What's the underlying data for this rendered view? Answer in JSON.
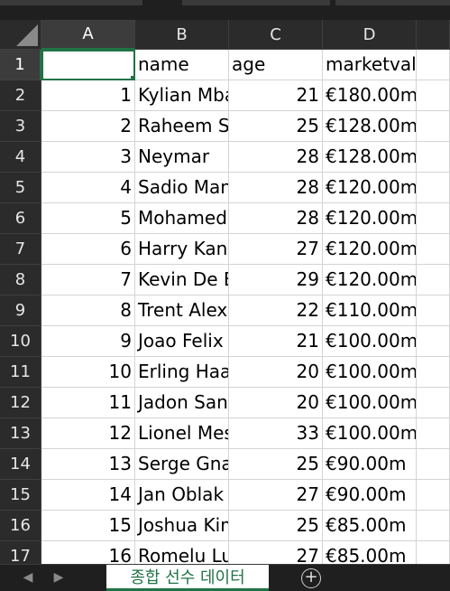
{
  "columns": [
    "A",
    "B",
    "C",
    "D"
  ],
  "rows": [
    {
      "row": "1",
      "a": "",
      "b": "name",
      "c": "age",
      "d": "marketvalue"
    },
    {
      "row": "2",
      "a": "1",
      "b": "Kylian Mbappé",
      "c": "21",
      "d": "€180.00m"
    },
    {
      "row": "3",
      "a": "2",
      "b": "Raheem Sterling",
      "c": "25",
      "d": "€128.00m"
    },
    {
      "row": "4",
      "a": "3",
      "b": "Neymar",
      "c": "28",
      "d": "€128.00m"
    },
    {
      "row": "5",
      "a": "4",
      "b": "Sadio Mané",
      "c": "28",
      "d": "€120.00m"
    },
    {
      "row": "6",
      "a": "5",
      "b": "Mohamed Salah",
      "c": "28",
      "d": "€120.00m"
    },
    {
      "row": "7",
      "a": "6",
      "b": "Harry Kane",
      "c": "27",
      "d": "€120.00m"
    },
    {
      "row": "8",
      "a": "7",
      "b": "Kevin De Bruyne",
      "c": "29",
      "d": "€120.00m"
    },
    {
      "row": "9",
      "a": "8",
      "b": "Trent Alexander-Arnold",
      "c": "22",
      "d": "€110.00m"
    },
    {
      "row": "10",
      "a": "9",
      "b": "Joao Felix",
      "c": "21",
      "d": "€100.00m"
    },
    {
      "row": "11",
      "a": "10",
      "b": "Erling Haaland",
      "c": "20",
      "d": "€100.00m"
    },
    {
      "row": "12",
      "a": "11",
      "b": "Jadon Sancho",
      "c": "20",
      "d": "€100.00m"
    },
    {
      "row": "13",
      "a": "12",
      "b": "Lionel Messi",
      "c": "33",
      "d": "€100.00m"
    },
    {
      "row": "14",
      "a": "13",
      "b": "Serge Gnabry",
      "c": "25",
      "d": "€90.00m"
    },
    {
      "row": "15",
      "a": "14",
      "b": "Jan Oblak",
      "c": "27",
      "d": "€90.00m"
    },
    {
      "row": "16",
      "a": "15",
      "b": "Joshua Kimmich",
      "c": "25",
      "d": "€85.00m"
    },
    {
      "row": "17",
      "a": "16",
      "b": "Romelu Lukaku",
      "c": "27",
      "d": "€85.00m"
    }
  ],
  "sheet_tab": "종합 선수 데이터",
  "colors": {
    "accent": "#217346"
  }
}
